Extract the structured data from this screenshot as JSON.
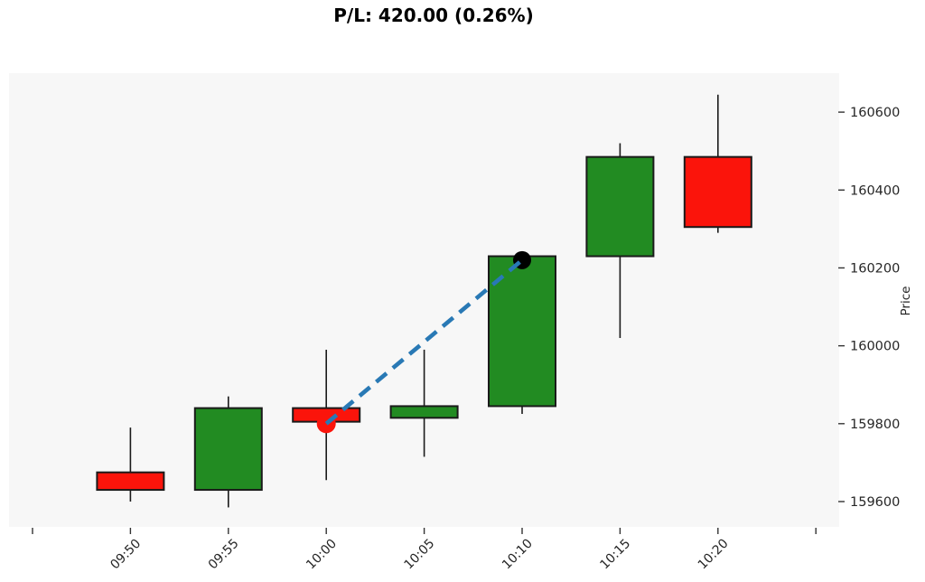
{
  "title": "P/L: 420.00 (0.26%)",
  "chart_data": {
    "type": "candlestick",
    "title": "P/L: 420.00 (0.26%)",
    "xlabel": "",
    "ylabel": "Price",
    "categories": [
      "09:50",
      "09:55",
      "10:00",
      "10:05",
      "10:10",
      "10:15",
      "10:20"
    ],
    "series": [
      {
        "name": "OHLC",
        "values": [
          {
            "time": "09:50",
            "open": 159675,
            "high": 159790,
            "low": 159600,
            "close": 159630,
            "direction": "down"
          },
          {
            "time": "09:55",
            "open": 159630,
            "high": 159870,
            "low": 159585,
            "close": 159840,
            "direction": "up"
          },
          {
            "time": "10:00",
            "open": 159840,
            "high": 159990,
            "low": 159655,
            "close": 159805,
            "direction": "down"
          },
          {
            "time": "10:05",
            "open": 159815,
            "high": 159990,
            "low": 159715,
            "close": 159845,
            "direction": "up"
          },
          {
            "time": "10:10",
            "open": 159845,
            "high": 160230,
            "low": 159825,
            "close": 160230,
            "direction": "up"
          },
          {
            "time": "10:15",
            "open": 160230,
            "high": 160520,
            "low": 160020,
            "close": 160485,
            "direction": "up"
          },
          {
            "time": "10:20",
            "open": 160485,
            "high": 160645,
            "low": 160290,
            "close": 160305,
            "direction": "down"
          }
        ]
      }
    ],
    "y_ticks": [
      159600,
      159800,
      160000,
      160200,
      160400,
      160600
    ],
    "ylim": [
      159535,
      160700
    ],
    "grid": false,
    "legend": "none",
    "trade_annotation": {
      "entry": {
        "time": "10:00",
        "price": 159800
      },
      "exit": {
        "time": "10:10",
        "price": 160220
      },
      "pl_points": 420.0,
      "pl_percent": 0.26,
      "line_style": "dashed"
    },
    "colors": {
      "up": "#228B22",
      "down": "#fb140b",
      "entry_marker": "#fb140b",
      "exit_marker": "#000000",
      "trade_line": "#2979b5",
      "plot_bg": "#f7f7f7",
      "wick": "#1a1a1a",
      "body_border": "#1a1a1a",
      "tick_text": "#262626",
      "tick_mark": "#333333"
    }
  }
}
